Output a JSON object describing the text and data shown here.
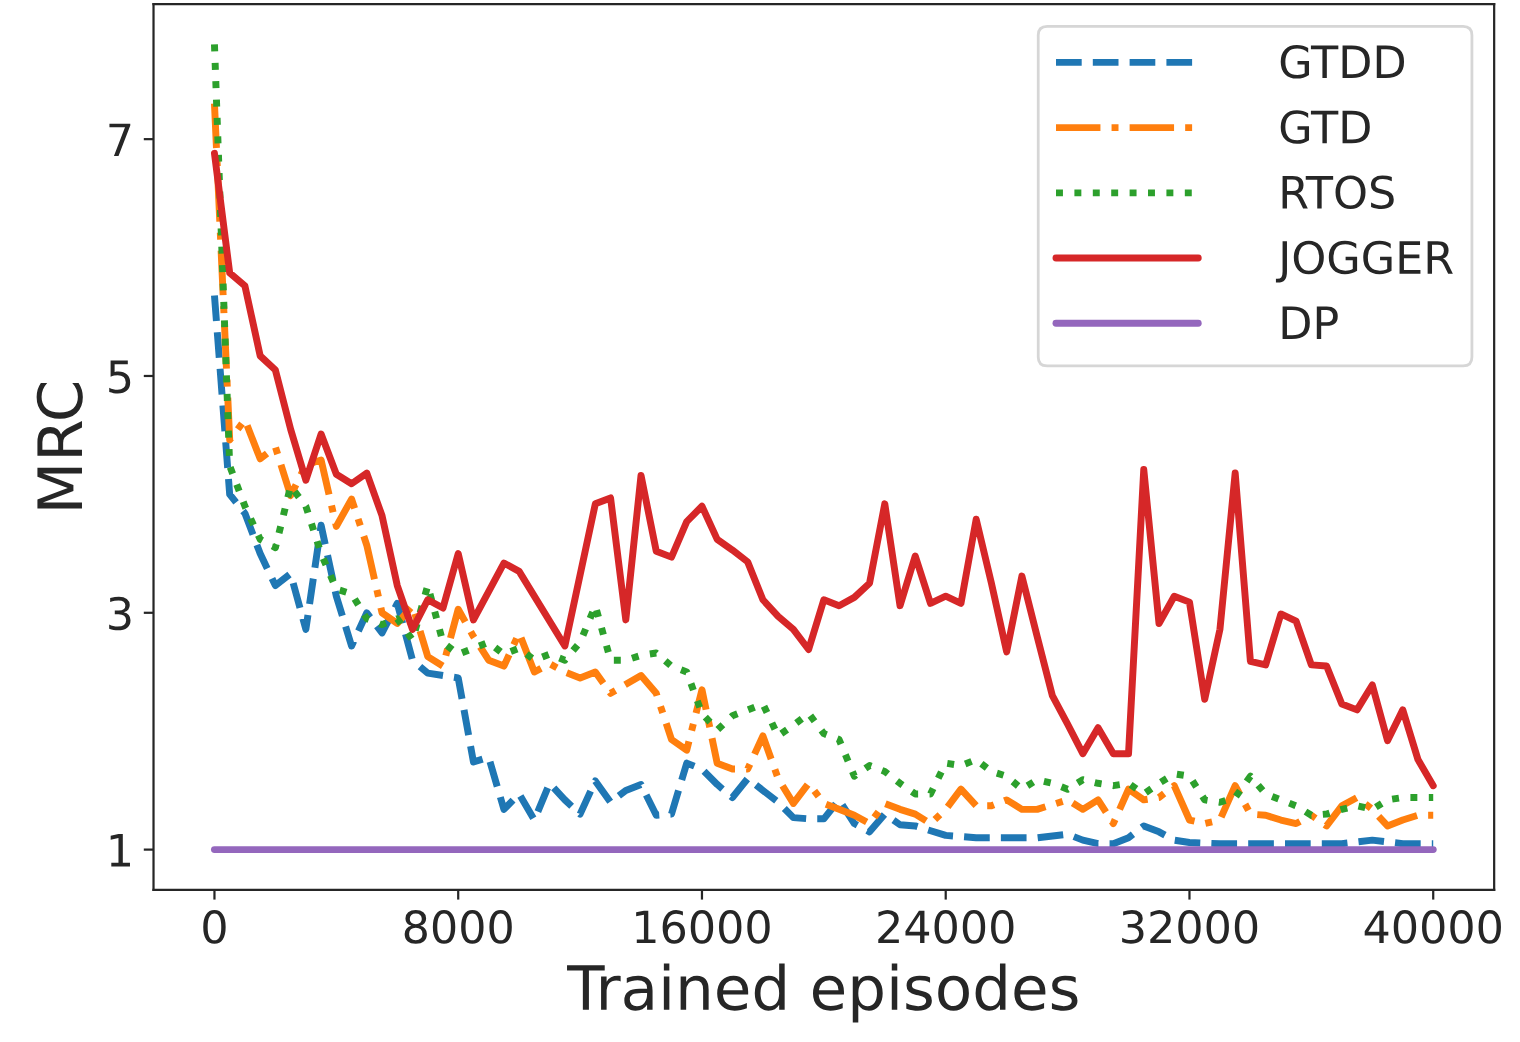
{
  "chart_data": {
    "type": "line",
    "xlabel": "Trained episodes",
    "ylabel": "MRC",
    "xlim": [
      -2000,
      42000
    ],
    "xticks": [
      0,
      8000,
      16000,
      24000,
      32000,
      40000
    ],
    "ylim": [
      0.66,
      8.14
    ],
    "yticks": [
      1,
      3,
      5,
      7
    ],
    "grid": false,
    "legend": "top right",
    "marker": "none",
    "x": [
      0,
      500,
      1000,
      1500,
      2000,
      2500,
      3000,
      3500,
      4000,
      4500,
      5000,
      5500,
      6000,
      6500,
      7000,
      7500,
      8000,
      8500,
      9000,
      9500,
      10000,
      10500,
      11000,
      11500,
      12000,
      12500,
      13000,
      13500,
      14000,
      14500,
      15000,
      15500,
      16000,
      16500,
      17000,
      17500,
      18000,
      18500,
      19000,
      19500,
      20000,
      20500,
      21000,
      21500,
      22000,
      22500,
      23000,
      23500,
      24000,
      24500,
      25000,
      25500,
      26000,
      26500,
      27000,
      27500,
      28000,
      28500,
      29000,
      29500,
      30000,
      30500,
      31000,
      31500,
      32000,
      32500,
      33000,
      33500,
      34000,
      34500,
      35000,
      35500,
      36000,
      36500,
      37000,
      37500,
      38000,
      38500,
      39000,
      39500,
      40000
    ],
    "series": [
      {
        "name": "GTDD",
        "color": "#1f77b4",
        "line_style": "dashed",
        "x": [
          0,
          500,
          1000,
          1500,
          2000,
          2500,
          3000,
          3500,
          4000,
          4500,
          5000,
          5500,
          6000,
          6500,
          7000,
          8000,
          8500,
          9000,
          9500,
          10000,
          10500,
          11000,
          11500,
          12000,
          12500,
          13000,
          13500,
          14000,
          14500,
          15000,
          15500,
          16000,
          16500,
          17000,
          17500,
          18000,
          18500,
          19000,
          19500,
          20000,
          20500,
          21000,
          21500,
          22000,
          22500,
          23000,
          24000,
          25000,
          26000,
          27000,
          28000,
          28500,
          29000,
          29500,
          30000,
          30500,
          31000,
          31500,
          32000,
          33000,
          34000,
          35000,
          36000,
          37000,
          38000,
          39000,
          40000
        ],
        "values": [
          5.68,
          4.0,
          3.84,
          3.5,
          3.23,
          3.33,
          2.86,
          3.74,
          3.14,
          2.72,
          3.0,
          2.83,
          3.08,
          2.6,
          2.49,
          2.45,
          1.74,
          1.78,
          1.34,
          1.47,
          1.25,
          1.56,
          1.42,
          1.3,
          1.58,
          1.4,
          1.5,
          1.55,
          1.29,
          1.3,
          1.73,
          1.68,
          1.55,
          1.44,
          1.6,
          1.5,
          1.4,
          1.27,
          1.26,
          1.26,
          1.42,
          1.22,
          1.15,
          1.3,
          1.21,
          1.2,
          1.12,
          1.1,
          1.1,
          1.1,
          1.13,
          1.08,
          1.05,
          1.05,
          1.1,
          1.2,
          1.15,
          1.08,
          1.06,
          1.05,
          1.05,
          1.05,
          1.05,
          1.05,
          1.08,
          1.05,
          1.05
        ]
      },
      {
        "name": "GTD",
        "color": "#ff7f0e",
        "line_style": "dashdot",
        "x": [
          0,
          500,
          1000,
          1500,
          2000,
          2500,
          3000,
          3500,
          4000,
          4500,
          5000,
          5500,
          6000,
          6500,
          7000,
          7500,
          8000,
          8500,
          9000,
          9500,
          10000,
          10500,
          11000,
          11500,
          12000,
          12500,
          13000,
          14000,
          14500,
          15000,
          15500,
          16000,
          16500,
          17000,
          17500,
          18000,
          18500,
          19000,
          19500,
          20000,
          20500,
          21000,
          21500,
          22000,
          22500,
          23000,
          23500,
          24000,
          24500,
          25000,
          25500,
          26000,
          26500,
          27000,
          28000,
          28500,
          29000,
          29500,
          30000,
          30500,
          31000,
          31500,
          32000,
          32500,
          33000,
          33500,
          34000,
          34500,
          35000,
          35500,
          36000,
          36500,
          37000,
          37500,
          38000,
          38500,
          39000,
          39500,
          40000
        ],
        "values": [
          7.3,
          4.46,
          4.63,
          4.3,
          4.4,
          3.99,
          4.25,
          4.29,
          3.73,
          3.96,
          3.57,
          3.0,
          2.91,
          3.06,
          2.63,
          2.55,
          3.03,
          2.8,
          2.6,
          2.55,
          2.83,
          2.5,
          2.57,
          2.5,
          2.45,
          2.5,
          2.32,
          2.47,
          2.32,
          1.93,
          1.84,
          2.35,
          1.73,
          1.68,
          1.68,
          1.96,
          1.6,
          1.39,
          1.56,
          1.39,
          1.34,
          1.29,
          1.22,
          1.39,
          1.34,
          1.3,
          1.22,
          1.34,
          1.51,
          1.37,
          1.37,
          1.42,
          1.34,
          1.34,
          1.42,
          1.34,
          1.42,
          1.22,
          1.51,
          1.42,
          1.44,
          1.54,
          1.25,
          1.22,
          1.25,
          1.54,
          1.3,
          1.29,
          1.25,
          1.22,
          1.29,
          1.2,
          1.37,
          1.44,
          1.34,
          1.2,
          1.25,
          1.29,
          1.29
        ]
      },
      {
        "name": "RTOS",
        "color": "#2ca02c",
        "line_style": "dotted",
        "values": [
          7.8,
          4.24,
          3.9,
          3.62,
          3.55,
          4.07,
          3.9,
          3.5,
          3.2,
          3.16,
          2.95,
          2.9,
          2.95,
          2.77,
          3.23,
          2.75,
          2.65,
          2.7,
          2.75,
          2.65,
          2.7,
          2.6,
          2.65,
          2.6,
          2.75,
          3.06,
          2.6,
          2.6,
          2.64,
          2.66,
          2.55,
          2.5,
          2.15,
          2.01,
          2.13,
          2.18,
          2.23,
          1.96,
          2.05,
          2.15,
          1.98,
          1.93,
          1.62,
          1.71,
          1.66,
          1.56,
          1.47,
          1.47,
          1.73,
          1.71,
          1.76,
          1.66,
          1.62,
          1.51,
          1.59,
          1.56,
          1.51,
          1.59,
          1.56,
          1.54,
          1.56,
          1.47,
          1.56,
          1.64,
          1.62,
          1.42,
          1.4,
          1.44,
          1.62,
          1.47,
          1.42,
          1.37,
          1.29,
          1.3,
          1.34,
          1.37,
          1.34,
          1.42,
          1.44,
          1.44,
          1.44
        ]
      },
      {
        "name": "JOGGER",
        "color": "#d62728",
        "line_style": "solid",
        "x": [
          0,
          500,
          1000,
          1500,
          2000,
          2500,
          3000,
          3500,
          4000,
          4500,
          5000,
          5500,
          6000,
          6500,
          7000,
          7500,
          8000,
          8500,
          9500,
          10000,
          11500,
          12500,
          13000,
          13500,
          14000,
          14500,
          15000,
          15500,
          16000,
          16500,
          17000,
          17500,
          18000,
          18500,
          19000,
          19500,
          20000,
          20500,
          21000,
          21500,
          22000,
          22500,
          23000,
          23500,
          24000,
          24500,
          25000,
          25500,
          26000,
          26500,
          27000,
          27500,
          28000,
          28500,
          29000,
          29500,
          30000,
          30500,
          31000,
          31500,
          32000,
          32500,
          33000,
          33500,
          34000,
          34500,
          35000,
          35500,
          36000,
          36500,
          37000,
          37500,
          38000,
          38500,
          39000,
          39500,
          40000
        ],
        "values": [
          6.88,
          5.87,
          5.76,
          5.17,
          5.05,
          4.55,
          4.12,
          4.51,
          4.17,
          4.09,
          4.18,
          3.82,
          3.23,
          2.86,
          3.11,
          3.04,
          3.5,
          2.94,
          3.42,
          3.35,
          2.72,
          3.92,
          3.97,
          2.94,
          4.16,
          3.52,
          3.47,
          3.77,
          3.9,
          3.62,
          3.53,
          3.43,
          3.11,
          2.97,
          2.86,
          2.69,
          3.11,
          3.06,
          3.13,
          3.25,
          3.92,
          3.06,
          3.48,
          3.08,
          3.14,
          3.08,
          3.79,
          3.25,
          2.67,
          3.31,
          2.8,
          2.3,
          2.06,
          1.81,
          2.03,
          1.81,
          1.81,
          4.21,
          2.91,
          3.14,
          3.09,
          2.27,
          2.86,
          4.18,
          2.59,
          2.56,
          2.99,
          2.93,
          2.56,
          2.55,
          2.23,
          2.18,
          2.39,
          1.92,
          2.18,
          1.76,
          1.54
        ]
      },
      {
        "name": "DP",
        "color": "#9467bd",
        "line_style": "solid",
        "x": [
          0,
          40000
        ],
        "values": [
          1,
          1
        ]
      }
    ]
  }
}
